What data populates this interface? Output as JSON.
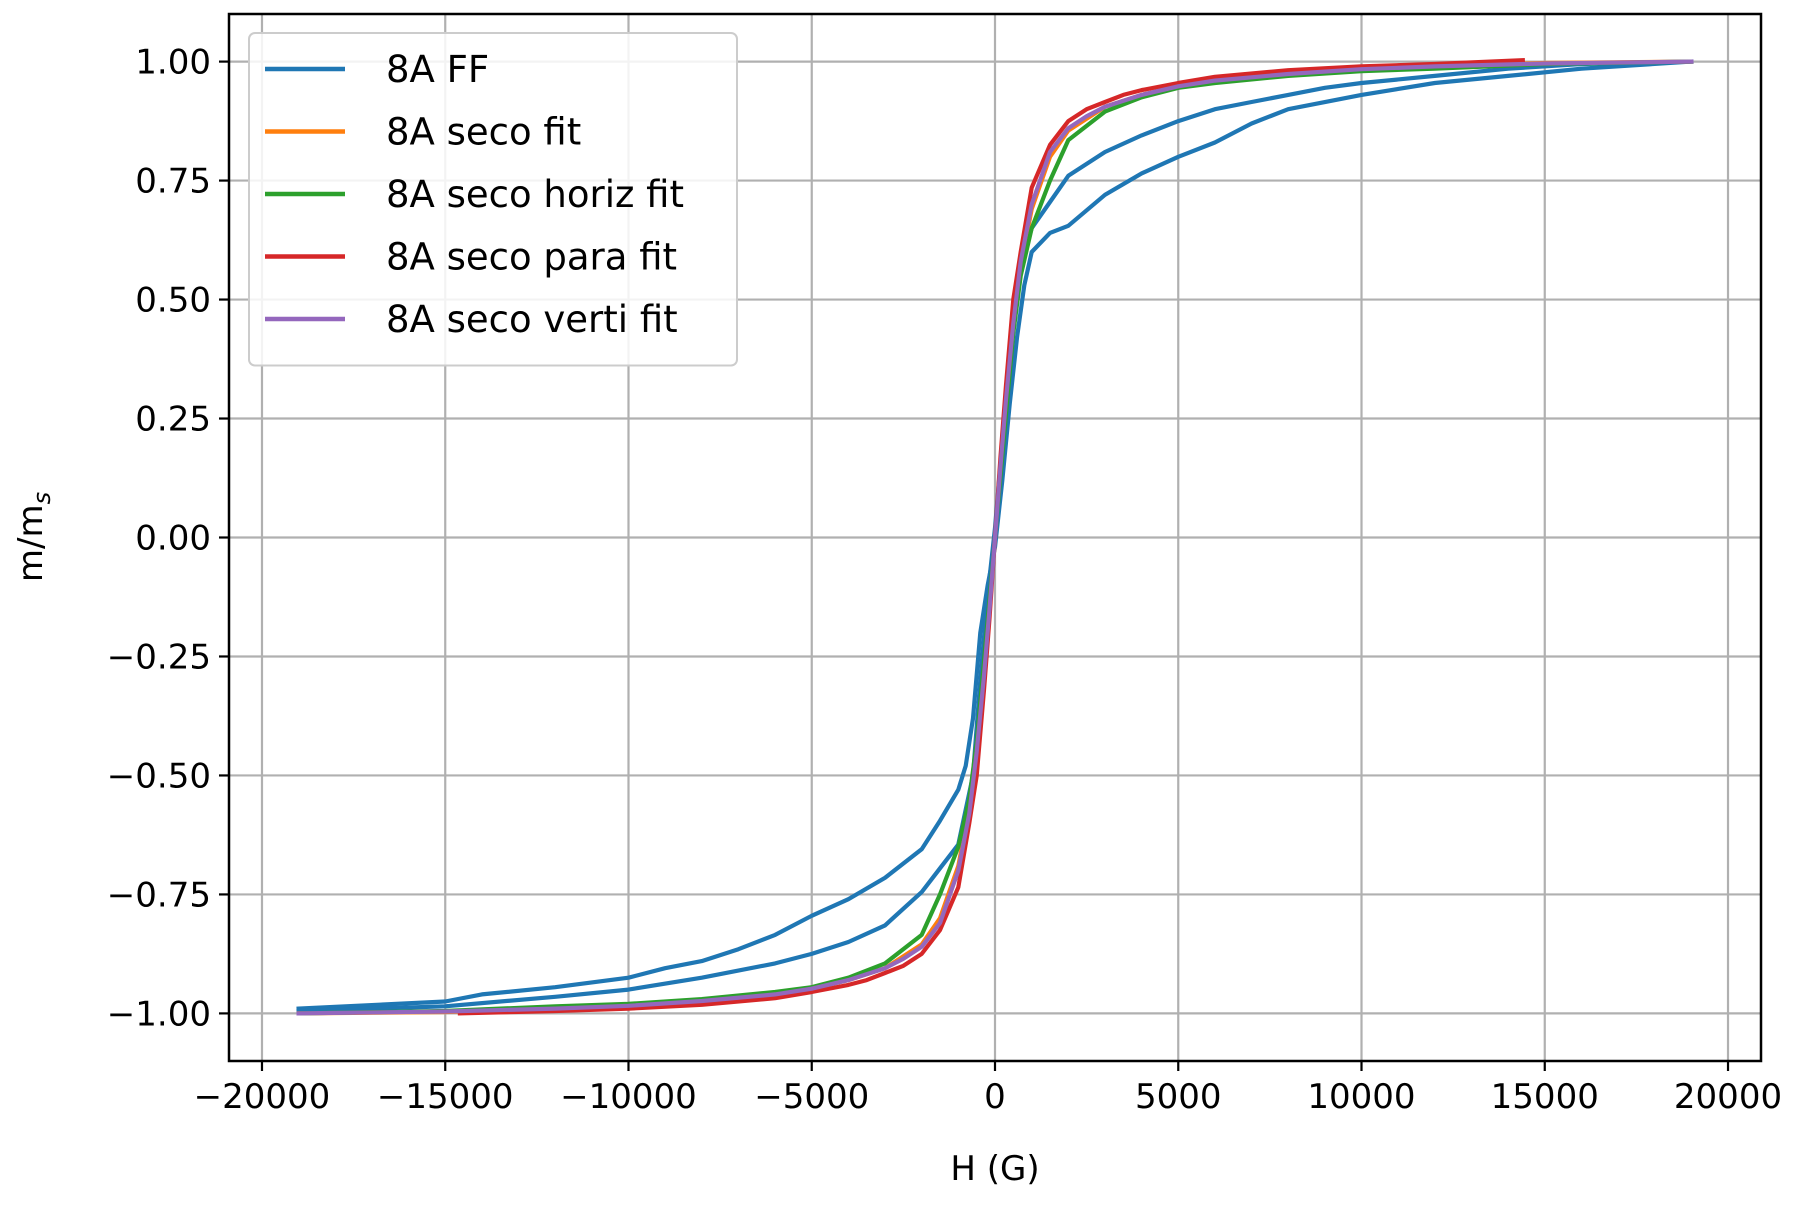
{
  "chart_data": {
    "type": "line",
    "title": "",
    "xlabel": "H (G)",
    "ylabel": {
      "main": "m/m",
      "sub": "s"
    },
    "xlim": [
      -20900,
      20900
    ],
    "ylim": [
      -1.1,
      1.1
    ],
    "grid": true,
    "legend_position": "top-left",
    "xticks": [
      -20000,
      -15000,
      -10000,
      -5000,
      0,
      5000,
      10000,
      15000,
      20000
    ],
    "xtick_labels": [
      "−20000",
      "−15000",
      "−10000",
      "−5000",
      "0",
      "5000",
      "10000",
      "15000",
      "20000"
    ],
    "yticks": [
      1.0,
      0.75,
      0.5,
      0.25,
      0.0,
      -0.25,
      -0.5,
      -0.75,
      -1.0
    ],
    "ytick_labels": [
      "1.00",
      "0.75",
      "0.50",
      "0.25",
      "0.00",
      "−0.25",
      "−0.50",
      "−0.75",
      "−1.00"
    ],
    "series": [
      {
        "name": "8A FF",
        "color": "#1f77b4",
        "branches": [
          [
            [
              -19000,
              -0.99
            ],
            [
              -15000,
              -0.975
            ],
            [
              -14000,
              -0.96
            ],
            [
              -12000,
              -0.945
            ],
            [
              -10000,
              -0.925
            ],
            [
              -9000,
              -0.905
            ],
            [
              -8000,
              -0.89
            ],
            [
              -7000,
              -0.865
            ],
            [
              -6000,
              -0.835
            ],
            [
              -5000,
              -0.795
            ],
            [
              -4000,
              -0.76
            ],
            [
              -3000,
              -0.715
            ],
            [
              -2000,
              -0.655
            ],
            [
              -1500,
              -0.595
            ],
            [
              -1000,
              -0.53
            ],
            [
              -800,
              -0.48
            ],
            [
              -600,
              -0.38
            ],
            [
              -400,
              -0.2
            ],
            [
              -200,
              -0.1
            ],
            [
              0,
              -0.02
            ],
            [
              200,
              0.12
            ],
            [
              400,
              0.28
            ],
            [
              600,
              0.42
            ],
            [
              800,
              0.53
            ],
            [
              1000,
              0.6
            ],
            [
              1500,
              0.64
            ],
            [
              2000,
              0.655
            ],
            [
              3000,
              0.72
            ],
            [
              4000,
              0.765
            ],
            [
              5000,
              0.8
            ],
            [
              6000,
              0.83
            ],
            [
              7000,
              0.87
            ],
            [
              8000,
              0.9
            ],
            [
              10000,
              0.93
            ],
            [
              12000,
              0.955
            ],
            [
              14000,
              0.97
            ],
            [
              16000,
              0.985
            ],
            [
              19000,
              1.0
            ]
          ],
          [
            [
              -19000,
              -0.995
            ],
            [
              -15000,
              -0.985
            ],
            [
              -12000,
              -0.965
            ],
            [
              -10000,
              -0.95
            ],
            [
              -8000,
              -0.925
            ],
            [
              -6000,
              -0.895
            ],
            [
              -5000,
              -0.875
            ],
            [
              -4000,
              -0.85
            ],
            [
              -3000,
              -0.815
            ],
            [
              -2000,
              -0.745
            ],
            [
              -1500,
              -0.695
            ],
            [
              -1000,
              -0.645
            ],
            [
              -600,
              -0.5
            ],
            [
              -400,
              -0.3
            ],
            [
              -200,
              -0.12
            ],
            [
              0,
              0.02
            ],
            [
              200,
              0.2
            ],
            [
              400,
              0.4
            ],
            [
              600,
              0.52
            ],
            [
              800,
              0.6
            ],
            [
              1000,
              0.65
            ],
            [
              1500,
              0.705
            ],
            [
              2000,
              0.76
            ],
            [
              3000,
              0.81
            ],
            [
              4000,
              0.845
            ],
            [
              5000,
              0.875
            ],
            [
              6000,
              0.9
            ],
            [
              7000,
              0.915
            ],
            [
              8000,
              0.93
            ],
            [
              9000,
              0.945
            ],
            [
              10000,
              0.955
            ],
            [
              12000,
              0.97
            ],
            [
              14000,
              0.985
            ],
            [
              16000,
              0.995
            ],
            [
              19000,
              1.0
            ]
          ]
        ]
      },
      {
        "name": "8A seco fit",
        "color": "#ff7f0e",
        "branches": [
          [
            [
              -19000,
              -1.0
            ],
            [
              -15000,
              -0.997
            ],
            [
              -12000,
              -0.99
            ],
            [
              -10000,
              -0.985
            ],
            [
              -8000,
              -0.975
            ],
            [
              -6000,
              -0.96
            ],
            [
              -5000,
              -0.948
            ],
            [
              -4000,
              -0.93
            ],
            [
              -3000,
              -0.905
            ],
            [
              -2500,
              -0.88
            ],
            [
              -2000,
              -0.855
            ],
            [
              -1500,
              -0.8
            ],
            [
              -1000,
              -0.69
            ],
            [
              -700,
              -0.57
            ],
            [
              -500,
              -0.44
            ],
            [
              -300,
              -0.28
            ],
            [
              -150,
              -0.15
            ],
            [
              0,
              0.0
            ],
            [
              150,
              0.15
            ],
            [
              300,
              0.28
            ],
            [
              500,
              0.44
            ],
            [
              700,
              0.57
            ],
            [
              1000,
              0.69
            ],
            [
              1500,
              0.8
            ],
            [
              2000,
              0.855
            ],
            [
              2500,
              0.88
            ],
            [
              3000,
              0.905
            ],
            [
              4000,
              0.93
            ],
            [
              5000,
              0.948
            ],
            [
              6000,
              0.96
            ],
            [
              8000,
              0.975
            ],
            [
              10000,
              0.985
            ],
            [
              12000,
              0.99
            ],
            [
              15000,
              0.997
            ],
            [
              19000,
              1.0
            ]
          ]
        ]
      },
      {
        "name": "8A seco horiz fit",
        "color": "#2ca02c",
        "branches": [
          [
            [
              -19000,
              -1.0
            ],
            [
              -15000,
              -0.995
            ],
            [
              -12000,
              -0.985
            ],
            [
              -10000,
              -0.98
            ],
            [
              -8000,
              -0.97
            ],
            [
              -6000,
              -0.955
            ],
            [
              -5000,
              -0.945
            ],
            [
              -4000,
              -0.925
            ],
            [
              -3000,
              -0.895
            ],
            [
              -2000,
              -0.835
            ],
            [
              -1500,
              -0.75
            ],
            [
              -1000,
              -0.65
            ],
            [
              -700,
              -0.55
            ],
            [
              -500,
              -0.43
            ],
            [
              -300,
              -0.26
            ],
            [
              -150,
              -0.13
            ],
            [
              0,
              0.0
            ],
            [
              150,
              0.13
            ],
            [
              300,
              0.26
            ],
            [
              500,
              0.43
            ],
            [
              700,
              0.55
            ],
            [
              1000,
              0.65
            ],
            [
              1500,
              0.75
            ],
            [
              2000,
              0.835
            ],
            [
              3000,
              0.895
            ],
            [
              4000,
              0.925
            ],
            [
              5000,
              0.945
            ],
            [
              6000,
              0.955
            ],
            [
              8000,
              0.97
            ],
            [
              10000,
              0.98
            ],
            [
              12000,
              0.985
            ],
            [
              15000,
              0.995
            ],
            [
              19000,
              1.0
            ]
          ]
        ]
      },
      {
        "name": "8A seco para fit",
        "color": "#d62728",
        "branches": [
          [
            [
              -14600,
              -1.0
            ],
            [
              -12000,
              -0.995
            ],
            [
              -10000,
              -0.99
            ],
            [
              -8000,
              -0.982
            ],
            [
              -6000,
              -0.968
            ],
            [
              -5000,
              -0.955
            ],
            [
              -4000,
              -0.94
            ],
            [
              -3500,
              -0.93
            ],
            [
              -3000,
              -0.915
            ],
            [
              -2500,
              -0.9
            ],
            [
              -2000,
              -0.875
            ],
            [
              -1500,
              -0.825
            ],
            [
              -1000,
              -0.735
            ],
            [
              -700,
              -0.6
            ],
            [
              -500,
              -0.5
            ],
            [
              -300,
              -0.32
            ],
            [
              -150,
              -0.17
            ],
            [
              0,
              0.0
            ],
            [
              150,
              0.17
            ],
            [
              300,
              0.32
            ],
            [
              500,
              0.5
            ],
            [
              700,
              0.6
            ],
            [
              1000,
              0.735
            ],
            [
              1500,
              0.825
            ],
            [
              2000,
              0.875
            ],
            [
              2500,
              0.9
            ],
            [
              3000,
              0.915
            ],
            [
              3500,
              0.93
            ],
            [
              4000,
              0.94
            ],
            [
              5000,
              0.955
            ],
            [
              6000,
              0.968
            ],
            [
              8000,
              0.982
            ],
            [
              10000,
              0.99
            ],
            [
              12000,
              0.995
            ],
            [
              14400,
              1.003
            ]
          ]
        ]
      },
      {
        "name": "8A seco verti fit",
        "color": "#9467bd",
        "branches": [
          [
            [
              -19000,
              -1.0
            ],
            [
              -15000,
              -0.996
            ],
            [
              -12000,
              -0.99
            ],
            [
              -10000,
              -0.984
            ],
            [
              -8000,
              -0.974
            ],
            [
              -6000,
              -0.96
            ],
            [
              -5000,
              -0.948
            ],
            [
              -4000,
              -0.93
            ],
            [
              -3000,
              -0.905
            ],
            [
              -2500,
              -0.885
            ],
            [
              -2000,
              -0.86
            ],
            [
              -1500,
              -0.81
            ],
            [
              -1000,
              -0.7
            ],
            [
              -700,
              -0.58
            ],
            [
              -500,
              -0.45
            ],
            [
              -300,
              -0.29
            ],
            [
              -150,
              -0.15
            ],
            [
              0,
              0.0
            ],
            [
              150,
              0.15
            ],
            [
              300,
              0.29
            ],
            [
              500,
              0.45
            ],
            [
              700,
              0.58
            ],
            [
              1000,
              0.7
            ],
            [
              1500,
              0.81
            ],
            [
              2000,
              0.86
            ],
            [
              2500,
              0.885
            ],
            [
              3000,
              0.905
            ],
            [
              4000,
              0.93
            ],
            [
              5000,
              0.948
            ],
            [
              6000,
              0.96
            ],
            [
              8000,
              0.974
            ],
            [
              10000,
              0.984
            ],
            [
              12000,
              0.99
            ],
            [
              15000,
              0.996
            ],
            [
              19000,
              1.0
            ]
          ]
        ]
      }
    ]
  }
}
